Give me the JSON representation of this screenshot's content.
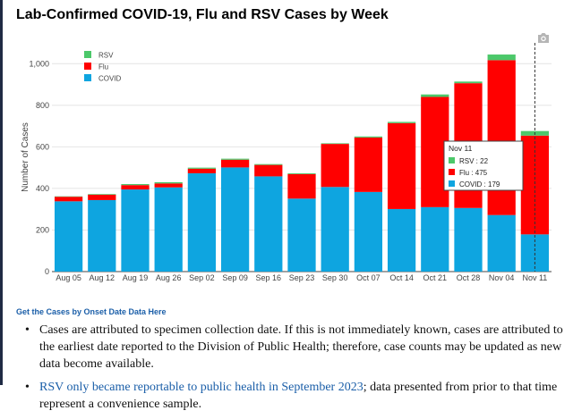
{
  "page": {
    "title": "Lab-Confirmed COVID-19, Flu and RSV Cases by Week",
    "camera_icon": "camera-icon",
    "link_text": "Get the Cases by Onset Date Data Here",
    "note1": "Cases are attributed to specimen collection date. If this is not immediately known, cases are attributed to the earliest date reported to the Division of Public Health; therefore, case counts may be updated as new data become available.",
    "note2_link": "RSV only became reportable to public health in September 2023",
    "note2_rest": "; data presented from prior to that time represent a convenience sample."
  },
  "chart_data": {
    "type": "bar",
    "stacked": true,
    "title": "Lab-Confirmed COVID-19, Flu and RSV Cases by Week",
    "xlabel": "",
    "ylabel": "Number of Cases",
    "ylim": [
      0,
      1100
    ],
    "yticks": [
      0,
      200,
      400,
      600,
      800,
      1000
    ],
    "ytick_labels": [
      "0",
      "200",
      "400",
      "600",
      "800",
      "1,000"
    ],
    "categories": [
      "Aug 05",
      "Aug 12",
      "Aug 19",
      "Aug 26",
      "Sep 02",
      "Sep 09",
      "Sep 16",
      "Sep 23",
      "Sep 30",
      "Oct 07",
      "Oct 14",
      "Oct 21",
      "Oct 28",
      "Nov 04",
      "Nov 11"
    ],
    "series": [
      {
        "name": "COVID",
        "color": "#0ea5e0",
        "values": [
          338,
          344,
          395,
          405,
          473,
          501,
          458,
          351,
          407,
          383,
          301,
          310,
          306,
          272,
          179
        ]
      },
      {
        "name": "Flu",
        "color": "#ff0000",
        "values": [
          22,
          26,
          21,
          19,
          22,
          37,
          55,
          118,
          207,
          262,
          413,
          530,
          600,
          745,
          475
        ]
      },
      {
        "name": "RSV",
        "color": "#4cc86a",
        "values": [
          2,
          3,
          5,
          6,
          5,
          5,
          4,
          4,
          3,
          5,
          6,
          12,
          8,
          27,
          22
        ]
      }
    ],
    "legend": {
      "position": "top-left",
      "order": [
        "RSV",
        "Flu",
        "COVID"
      ]
    },
    "grid": true,
    "hover": {
      "category": "Nov 11",
      "title": "Nov 11",
      "entries": [
        {
          "name": "RSV",
          "value": 22,
          "label": "RSV : 22",
          "color": "#4cc86a"
        },
        {
          "name": "Flu",
          "value": 475,
          "label": "Flu : 475",
          "color": "#ff0000"
        },
        {
          "name": "COVID",
          "value": 179,
          "label": "COVID : 179",
          "color": "#0ea5e0"
        }
      ]
    }
  }
}
